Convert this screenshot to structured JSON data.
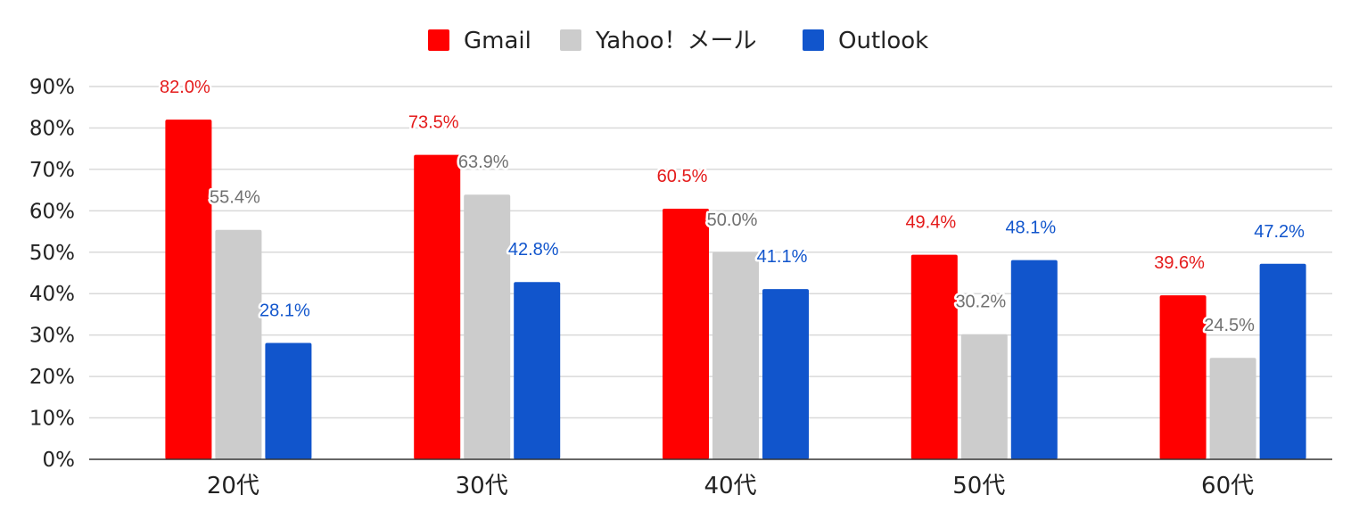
{
  "chart_data": {
    "type": "bar",
    "title": "",
    "xlabel": "",
    "ylabel": "",
    "categories": [
      "20代",
      "30代",
      "40代",
      "50代",
      "60代"
    ],
    "series": [
      {
        "name": "Gmail",
        "color": "#ff0000",
        "label_color": "#e41a1a",
        "values": [
          82.0,
          73.5,
          60.5,
          49.4,
          39.6
        ],
        "labels": [
          "82.0%",
          "73.5%",
          "60.5%",
          "49.4%",
          "39.6%"
        ]
      },
      {
        "name": "Yahoo！メール",
        "color": "#cccccc",
        "label_color": "#707070",
        "values": [
          55.4,
          63.9,
          50.0,
          30.2,
          24.5
        ],
        "labels": [
          "55.4%",
          "63.9%",
          "50.0%",
          "30.2%",
          "24.5%"
        ]
      },
      {
        "name": "Outlook",
        "color": "#1155cc",
        "label_color": "#1155cc",
        "values": [
          28.1,
          42.8,
          41.1,
          48.1,
          47.2
        ],
        "labels": [
          "28.1%",
          "42.8%",
          "41.1%",
          "48.1%",
          "47.2%"
        ]
      }
    ],
    "ylim": [
      0,
      90
    ],
    "yticks": [
      {
        "value": 0,
        "label": "0%"
      },
      {
        "value": 10,
        "label": "10%"
      },
      {
        "value": 20,
        "label": "20%"
      },
      {
        "value": 30,
        "label": "30%"
      },
      {
        "value": 40,
        "label": "40%"
      },
      {
        "value": 50,
        "label": "50%"
      },
      {
        "value": 60,
        "label": "60%"
      },
      {
        "value": 70,
        "label": "70%"
      },
      {
        "value": 80,
        "label": "80%"
      },
      {
        "value": 90,
        "label": "90%"
      }
    ],
    "grid": true,
    "legend_position": "top-center"
  }
}
